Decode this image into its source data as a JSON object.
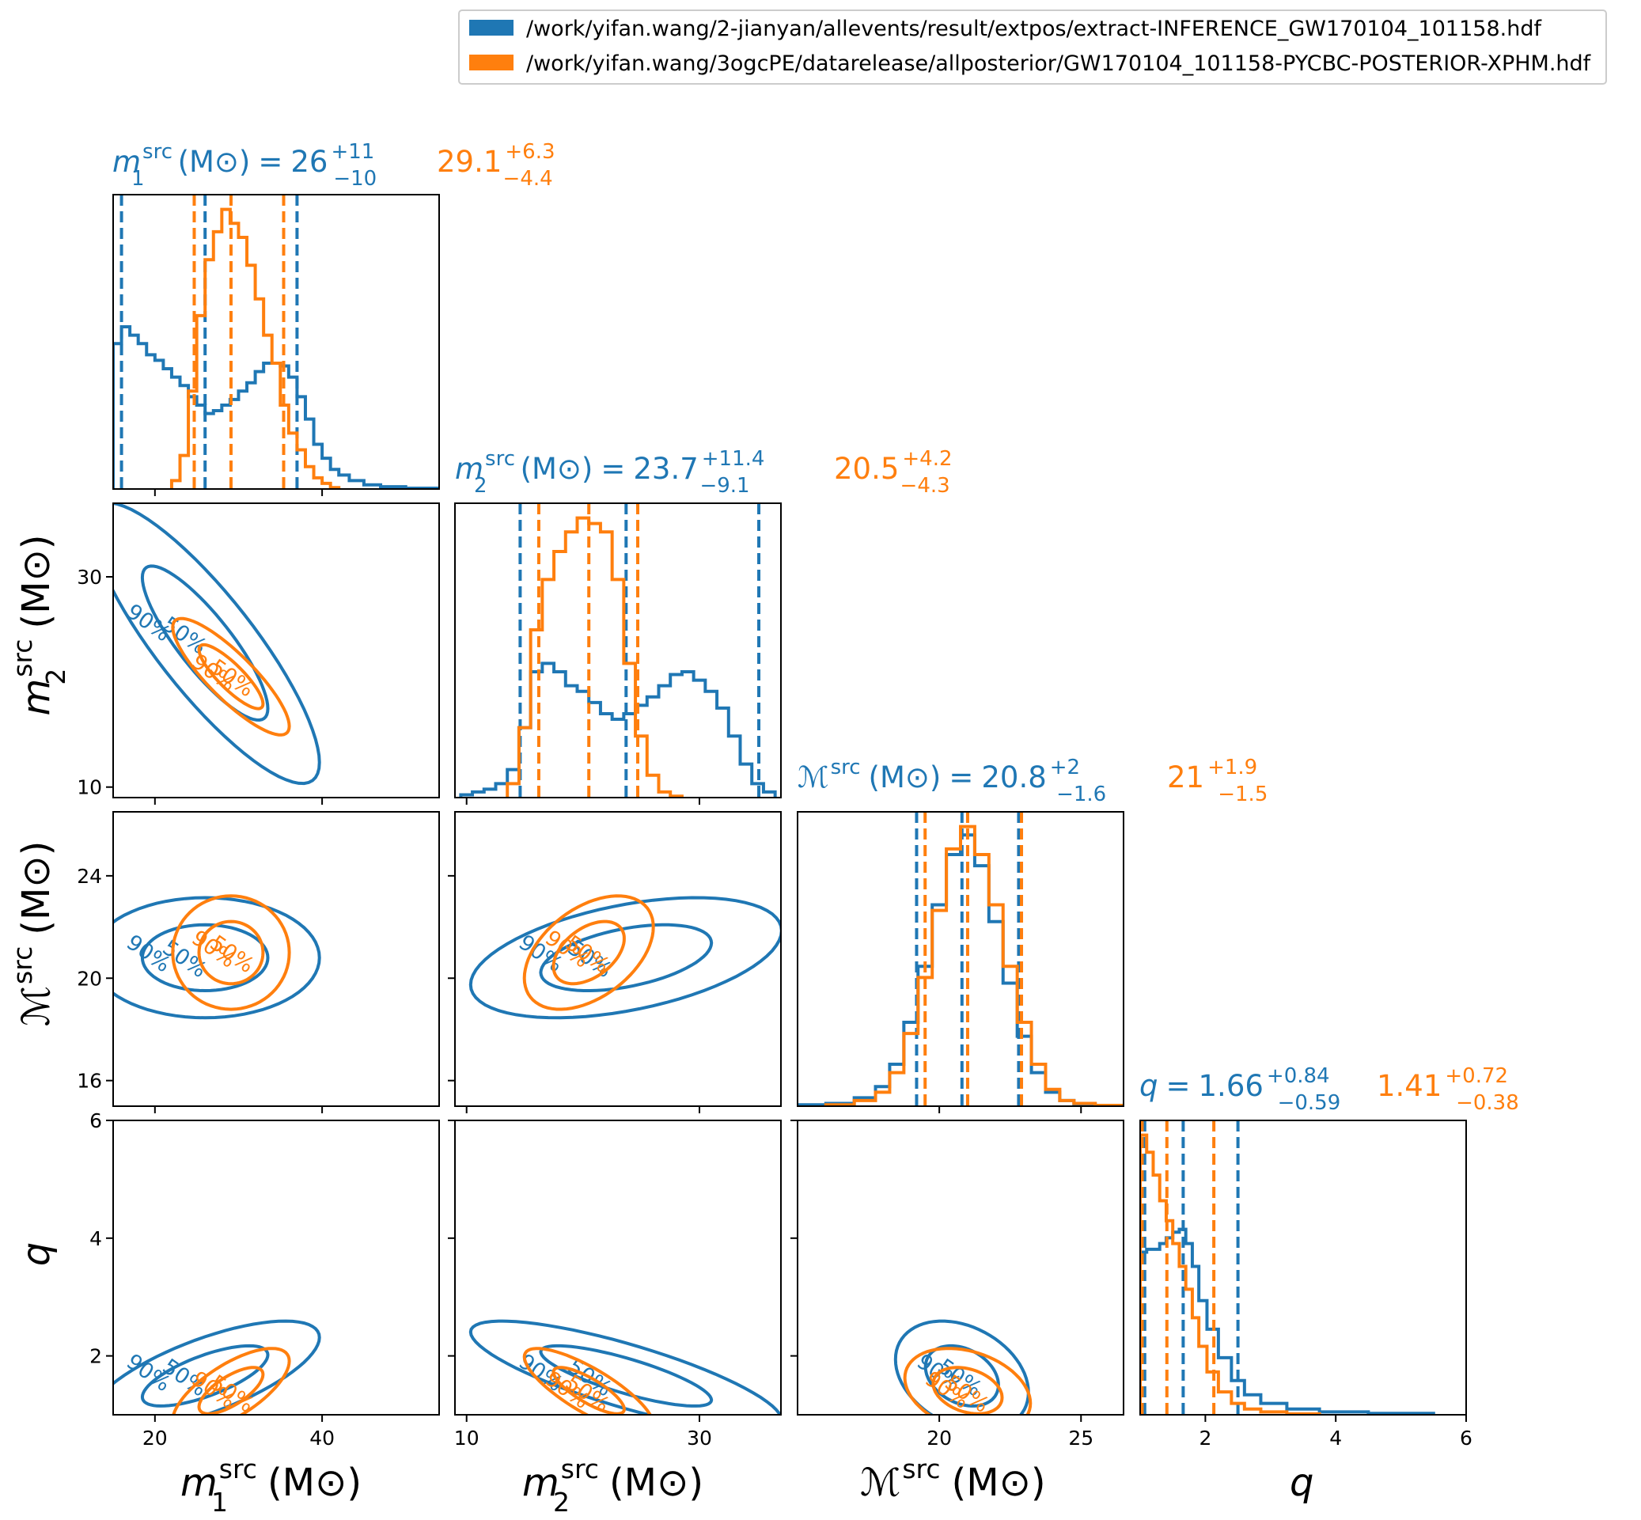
{
  "legend": [
    {
      "label": "/work/yifan.wang/2-jianyan/allevents/result/extpos/extract-INFERENCE_GW170104_101158.hdf",
      "color": "#1f77b4"
    },
    {
      "label": "/work/yifan.wang/3ogcPE/datarelease/allposterior/GW170104_101158-PYCBC-POSTERIOR-XPHM.hdf",
      "color": "#ff7f0e"
    }
  ],
  "colors": {
    "blue": "#1f77b4",
    "orange": "#ff7f0e"
  },
  "titles": [
    {
      "param": "m1",
      "blue": {
        "med": "26",
        "up": "+11",
        "lo": "−10"
      },
      "orange": {
        "med": "29.1",
        "up": "+6.3",
        "lo": "−4.4"
      }
    },
    {
      "param": "m2",
      "blue": {
        "med": "23.7",
        "up": "+11.4",
        "lo": "−9.1"
      },
      "orange": {
        "med": "20.5",
        "up": "+4.2",
        "lo": "−4.3"
      }
    },
    {
      "param": "Mc",
      "blue": {
        "med": "20.8",
        "up": "+2",
        "lo": "−1.6"
      },
      "orange": {
        "med": "21",
        "up": "+1.9",
        "lo": "−1.5"
      }
    },
    {
      "param": "q",
      "blue": {
        "med": "1.66",
        "up": "+0.84",
        "lo": "−0.59"
      },
      "orange": {
        "med": "1.41",
        "up": "+0.72",
        "lo": "−0.38"
      }
    }
  ],
  "axis_labels": {
    "m1": {
      "main": "m",
      "sub": "1",
      "sup": "src",
      "unit": "(M⊙)"
    },
    "m2": {
      "main": "m",
      "sub": "2",
      "sup": "src",
      "unit": "(M⊙)"
    },
    "Mc": {
      "main": "ℳ",
      "sub": "",
      "sup": "src",
      "unit": "(M⊙)"
    },
    "q": {
      "main": "q",
      "sub": "",
      "sup": "",
      "unit": ""
    }
  },
  "chart_data": {
    "type": "corner",
    "parameters": [
      "m1",
      "m2",
      "Mc",
      "q"
    ],
    "ranges": {
      "m1": [
        15,
        54
      ],
      "m2": [
        9,
        37
      ],
      "Mc": [
        15,
        26.5
      ],
      "q": [
        1,
        6
      ]
    },
    "ticks": {
      "m1": [
        20,
        40
      ],
      "m2": [
        10,
        30
      ],
      "Mc": [
        16,
        20,
        24
      ],
      "q": [
        2,
        4,
        6
      ]
    },
    "tick_labels_x": {
      "m1": [
        "20",
        "40"
      ],
      "m2": [
        "10",
        "30"
      ],
      "Mc": [
        "20",
        "25"
      ],
      "q": [
        "2",
        "4",
        "6"
      ]
    },
    "tick_values_x": {
      "m1": [
        20,
        40
      ],
      "m2": [
        10,
        30
      ],
      "Mc": [
        20,
        25
      ],
      "q": [
        2,
        4,
        6
      ]
    },
    "tick_labels_y": {
      "m2": [
        "10",
        "30"
      ],
      "Mc": [
        "16",
        "20",
        "24"
      ],
      "q": [
        "2",
        "4",
        "6"
      ]
    },
    "tick_values_y": {
      "m2": [
        10,
        30
      ],
      "Mc": [
        16,
        20,
        24
      ],
      "q": [
        2,
        4,
        6
      ]
    },
    "quantiles": {
      "m1": {
        "blue": [
          16,
          26,
          37
        ],
        "orange": [
          24.7,
          29.1,
          35.4
        ]
      },
      "m2": {
        "blue": [
          14.6,
          23.7,
          35.1
        ],
        "orange": [
          16.2,
          20.5,
          24.7
        ]
      },
      "Mc": {
        "blue": [
          19.2,
          20.8,
          22.8
        ],
        "orange": [
          19.5,
          21.0,
          22.9
        ]
      },
      "q": {
        "blue": [
          1.07,
          1.66,
          2.5
        ],
        "orange": [
          1.03,
          1.41,
          2.13
        ]
      }
    },
    "histograms": {
      "m1": {
        "blue": {
          "x": [
            15.5,
            16.5,
            17.5,
            18.5,
            19.5,
            20.5,
            21.5,
            22.5,
            23.5,
            24.5,
            25.5,
            26.5,
            27.5,
            28.5,
            29.5,
            30.5,
            31.5,
            32.5,
            33.5,
            34.5,
            35.5,
            36.5,
            37.5,
            38.5,
            39.5,
            40.5,
            41.5,
            42.5,
            44,
            46,
            48,
            52
          ],
          "y": [
            0.52,
            0.58,
            0.55,
            0.52,
            0.48,
            0.46,
            0.43,
            0.4,
            0.37,
            0.33,
            0.3,
            0.27,
            0.28,
            0.3,
            0.32,
            0.35,
            0.38,
            0.42,
            0.45,
            0.45,
            0.44,
            0.4,
            0.33,
            0.25,
            0.16,
            0.11,
            0.07,
            0.05,
            0.03,
            0.015,
            0.008,
            0.003
          ]
        },
        "orange": {
          "x": [
            22.5,
            23.5,
            24.5,
            25.5,
            26.5,
            27.5,
            28.5,
            29.5,
            30.5,
            31.5,
            32.5,
            33.5,
            34.5,
            35.5,
            36.5,
            37.5,
            38.5,
            39.5,
            40.5,
            41.5
          ],
          "y": [
            0.03,
            0.12,
            0.35,
            0.62,
            0.82,
            0.92,
            1.0,
            0.95,
            0.9,
            0.8,
            0.68,
            0.55,
            0.45,
            0.3,
            0.2,
            0.14,
            0.08,
            0.04,
            0.02,
            0.005
          ]
        }
      },
      "m2": {
        "blue": {
          "x": [
            10,
            11,
            12,
            13,
            14,
            15,
            16,
            17,
            18,
            19,
            20,
            21,
            22,
            23,
            24,
            25,
            26,
            27,
            28,
            29,
            30,
            31,
            32,
            33,
            34,
            35,
            36
          ],
          "y": [
            0.01,
            0.02,
            0.03,
            0.05,
            0.1,
            0.25,
            0.45,
            0.48,
            0.45,
            0.4,
            0.38,
            0.34,
            0.3,
            0.28,
            0.3,
            0.33,
            0.36,
            0.4,
            0.44,
            0.45,
            0.42,
            0.38,
            0.32,
            0.22,
            0.12,
            0.05,
            0.02
          ]
        },
        "orange": {
          "x": [
            14,
            15,
            16,
            17,
            18,
            19,
            20,
            21,
            22,
            23,
            24,
            25,
            26,
            27,
            28
          ],
          "y": [
            0.05,
            0.25,
            0.6,
            0.78,
            0.88,
            0.95,
            1.0,
            0.98,
            0.95,
            0.78,
            0.48,
            0.22,
            0.08,
            0.02,
            0.005
          ]
        }
      },
      "Mc": {
        "blue": {
          "x": [
            15.5,
            16.5,
            17.5,
            18,
            18.5,
            19,
            19.5,
            20,
            20.5,
            21,
            21.5,
            22,
            22.5,
            23,
            23.5,
            24,
            24.5,
            25,
            26
          ],
          "y": [
            0.005,
            0.01,
            0.03,
            0.07,
            0.15,
            0.3,
            0.5,
            0.72,
            0.9,
            0.97,
            0.86,
            0.66,
            0.44,
            0.25,
            0.12,
            0.05,
            0.02,
            0.008,
            0.003
          ]
        },
        "orange": {
          "x": [
            16.5,
            17.5,
            18,
            18.5,
            19,
            19.5,
            20,
            20.5,
            21,
            21.5,
            22,
            22.5,
            23,
            23.5,
            24,
            24.5,
            25,
            26
          ],
          "y": [
            0.005,
            0.02,
            0.05,
            0.12,
            0.26,
            0.46,
            0.7,
            0.92,
            1.0,
            0.9,
            0.72,
            0.5,
            0.3,
            0.15,
            0.06,
            0.02,
            0.01,
            0.003
          ]
        }
      },
      "q": {
        "blue": {
          "x": [
            1.05,
            1.15,
            1.25,
            1.35,
            1.45,
            1.55,
            1.65,
            1.75,
            1.85,
            1.95,
            2.1,
            2.3,
            2.5,
            2.7,
            3.0,
            3.5,
            4.0,
            5.0
          ],
          "y": [
            0.57,
            0.58,
            0.58,
            0.6,
            0.62,
            0.64,
            0.65,
            0.6,
            0.52,
            0.4,
            0.3,
            0.2,
            0.12,
            0.07,
            0.04,
            0.02,
            0.01,
            0.005
          ]
        },
        "orange": {
          "x": [
            1.05,
            1.15,
            1.25,
            1.35,
            1.45,
            1.55,
            1.65,
            1.75,
            1.85,
            1.95,
            2.1,
            2.3,
            2.5,
            2.7,
            3.0,
            3.5
          ],
          "y": [
            0.98,
            0.92,
            0.84,
            0.75,
            0.68,
            0.6,
            0.52,
            0.44,
            0.34,
            0.24,
            0.15,
            0.08,
            0.04,
            0.02,
            0.01,
            0.003
          ]
        }
      }
    },
    "contour_levels": [
      "50%",
      "90%"
    ]
  }
}
